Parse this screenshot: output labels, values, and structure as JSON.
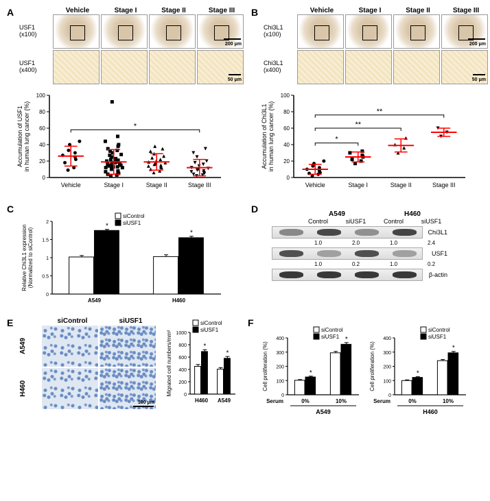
{
  "panelA": {
    "label": "A",
    "ihc": {
      "columns": [
        "Vehicle",
        "Stage I",
        "Stage II",
        "Stage III"
      ],
      "rows": [
        {
          "label": "USF1\n(x100)",
          "mag": 100,
          "scale": "200 μm"
        },
        {
          "label": "USF1\n(x400)",
          "mag": 400,
          "scale": "50 μm"
        }
      ]
    },
    "scatter": {
      "ylabel": "Accumulation of USF1\nin human lung cancer (%)",
      "ylim": [
        0,
        100
      ],
      "ytick_step": 20,
      "groups": [
        "Vehicle",
        "Stage I",
        "Stage II",
        "Stage III"
      ],
      "mean_color": "#ff0000",
      "point_color": "#000000",
      "means": [
        26,
        19,
        19,
        12
      ],
      "sds": [
        12,
        15,
        10,
        10
      ],
      "markers": [
        "circle",
        "square",
        "triangle",
        "inv-triangle"
      ],
      "points": [
        [
          9,
          12,
          18,
          22,
          25,
          27,
          30,
          33,
          40,
          44
        ],
        [
          2,
          3,
          4,
          5,
          6,
          7,
          8,
          10,
          11,
          12,
          12,
          13,
          13,
          14,
          15,
          15,
          16,
          17,
          18,
          18,
          19,
          20,
          20,
          21,
          22,
          23,
          25,
          27,
          28,
          30,
          32,
          33,
          35,
          38,
          40,
          44,
          50,
          92
        ],
        [
          6,
          8,
          10,
          12,
          13,
          14,
          15,
          16,
          17,
          18,
          19,
          20,
          22,
          24,
          26,
          29,
          32,
          35,
          38
        ],
        [
          2,
          3,
          4,
          5,
          6,
          7,
          8,
          9,
          10,
          11,
          12,
          14,
          16,
          18,
          20,
          25,
          30,
          35
        ]
      ],
      "sig": [
        {
          "from": 0,
          "to": 3,
          "label": "*",
          "y": 58
        }
      ]
    }
  },
  "panelB": {
    "label": "B",
    "ihc": {
      "columns": [
        "Vehicle",
        "Stage I",
        "Stage II",
        "Stage III"
      ],
      "rows": [
        {
          "label": "Chi3L1\n(x100)",
          "mag": 100,
          "scale": "200 μm"
        },
        {
          "label": "Chi3L1\n(x400)",
          "mag": 400,
          "scale": "50 μm"
        }
      ]
    },
    "scatter": {
      "ylabel": "Accumulation of Chi3L1\nin human lung cancer (%)",
      "ylim": [
        0,
        100
      ],
      "ytick_step": 20,
      "groups": [
        "Vehicle",
        "Stage I",
        "Stage II",
        "Stage III"
      ],
      "mean_color": "#ff0000",
      "point_color": "#000000",
      "means": [
        10,
        25,
        39,
        55
      ],
      "sds": [
        6,
        6,
        8,
        5
      ],
      "markers": [
        "circle",
        "square",
        "triangle",
        "inv-triangle"
      ],
      "points": [
        [
          2,
          4,
          5,
          6,
          8,
          10,
          12,
          14,
          17,
          20
        ],
        [
          17,
          20,
          22,
          25,
          27,
          30,
          32
        ],
        [
          30,
          36,
          40,
          48
        ],
        [
          50,
          55,
          60
        ]
      ],
      "sig": [
        {
          "from": 0,
          "to": 1,
          "label": "*",
          "y": 42
        },
        {
          "from": 0,
          "to": 2,
          "label": "**",
          "y": 60
        },
        {
          "from": 0,
          "to": 3,
          "label": "**",
          "y": 76
        }
      ]
    }
  },
  "panelC": {
    "label": "C",
    "type": "bar",
    "ylabel": "Relative Chi3L1 expression\n(Normalized to siControl)",
    "ylim": [
      0.0,
      2.0
    ],
    "ytick_step": 0.5,
    "groups": [
      "A549",
      "H460"
    ],
    "legend": [
      "siControl",
      "siUSF1"
    ],
    "colors": [
      "#ffffff",
      "#000000"
    ],
    "values": [
      [
        1.02,
        1.75
      ],
      [
        1.03,
        1.55
      ]
    ],
    "errors": [
      [
        0.04,
        0.03
      ],
      [
        0.05,
        0.04
      ]
    ],
    "sig": [
      "*",
      "*"
    ]
  },
  "panelD": {
    "label": "D",
    "cells": [
      "A549",
      "H460"
    ],
    "conds": [
      "Control",
      "siUSF1",
      "Control",
      "siUSF1"
    ],
    "rows": [
      {
        "label": "Chi3L1",
        "intensity": [
          0.4,
          0.8,
          0.35,
          0.82
        ],
        "numbers": [
          "1.0",
          "2.0",
          "1.0",
          "2.4"
        ]
      },
      {
        "label": "USF1",
        "intensity": [
          0.75,
          0.25,
          0.75,
          0.25
        ],
        "numbers": [
          "1.0",
          "0.2",
          "1.0",
          "0.2"
        ]
      },
      {
        "label": "β-actin",
        "intensity": [
          0.9,
          0.9,
          0.9,
          0.9
        ],
        "numbers": null
      }
    ]
  },
  "panelE": {
    "label": "E",
    "columns": [
      "siControl",
      "siUSF1"
    ],
    "rows": [
      "A549",
      "H460"
    ],
    "scale": "100 μm",
    "chart": {
      "ylabel": "Migrated cell numbers/mm²",
      "ylim": [
        0,
        1000
      ],
      "ytick_step": 200,
      "groups": [
        "H460",
        "A549"
      ],
      "legend": [
        "siControl",
        "siUSF1"
      ],
      "colors": [
        "#ffffff",
        "#000000"
      ],
      "values": [
        [
          450,
          690
        ],
        [
          405,
          580
        ]
      ],
      "errors": [
        [
          30,
          30
        ],
        [
          25,
          30
        ]
      ],
      "sig": [
        "*",
        "*"
      ]
    }
  },
  "panelF": {
    "label": "F",
    "charts": [
      {
        "title": "A549",
        "ylabel": "Cell proliferation (%)",
        "ylim": [
          0,
          400
        ],
        "ytick_step": 100,
        "xlabel": "Serum",
        "groups": [
          "0%",
          "10%"
        ],
        "legend": [
          "siControl",
          "siUSF1"
        ],
        "colors": [
          "#ffffff",
          "#000000"
        ],
        "values": [
          [
            102,
            125
          ],
          [
            295,
            355
          ]
        ],
        "errors": [
          [
            5,
            6
          ],
          [
            10,
            12
          ]
        ],
        "sig": [
          "*",
          "*"
        ]
      },
      {
        "title": "H460",
        "ylabel": "Cell proliferation (%)",
        "ylim": [
          0,
          400
        ],
        "ytick_step": 100,
        "xlabel": "Serum",
        "groups": [
          "0%",
          "10%"
        ],
        "legend": [
          "siControl",
          "siUSF1"
        ],
        "colors": [
          "#ffffff",
          "#000000"
        ],
        "values": [
          [
            100,
            122
          ],
          [
            240,
            295
          ]
        ],
        "errors": [
          [
            5,
            5
          ],
          [
            8,
            10
          ]
        ],
        "sig": [
          "*",
          "*"
        ]
      }
    ]
  },
  "layout": {
    "background_color": "#ffffff",
    "font": "Arial",
    "font_size_label": 14,
    "font_size_axis": 9,
    "font_size_tick": 8
  }
}
